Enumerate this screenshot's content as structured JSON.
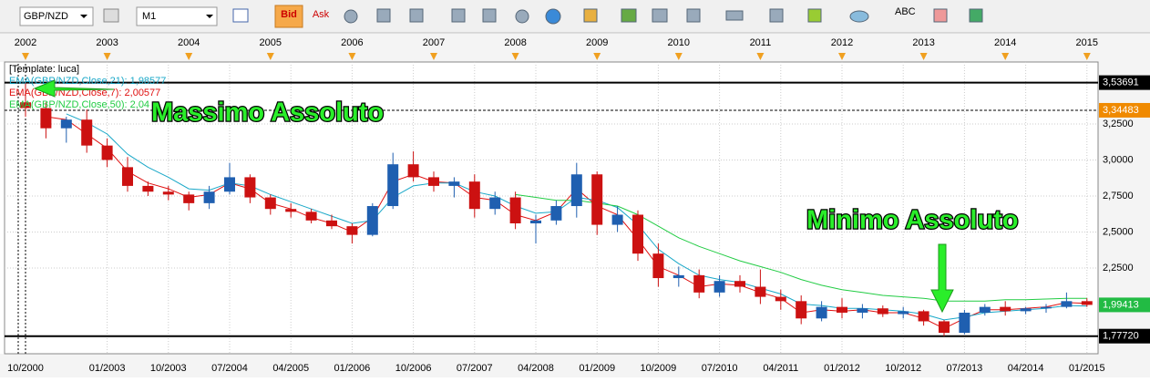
{
  "toolbar": {
    "symbol": "GBP/NZD",
    "timeframe": "M1",
    "bid": "Bid",
    "ask": "Ask",
    "abc": "ABC"
  },
  "chart_data": {
    "type": "candlestick",
    "legend_lines": [
      "[Template: luca]",
      "EMA(GBP/NZD,Close,21): 1,98577",
      "EMA(GBP/NZD,Close,7): 2,00577",
      "EMA(GBP/NZD,Close,50): 2,04"
    ],
    "annotations": [
      "Massimo Assoluto",
      "Minimo Assoluto"
    ],
    "top_axis": [
      "2002",
      "2003",
      "2004",
      "2005",
      "2006",
      "2007",
      "2008",
      "2009",
      "2010",
      "2011",
      "2012",
      "2013",
      "2014",
      "2015"
    ],
    "categories": [
      "10/2000",
      null,
      null,
      null,
      "01/2003",
      null,
      null,
      "10/2003",
      null,
      null,
      "07/2004",
      null,
      null,
      "04/2005",
      null,
      null,
      "01/2006",
      null,
      null,
      "10/2006",
      null,
      null,
      "07/2007",
      null,
      null,
      "04/2008",
      null,
      null,
      "01/2009",
      null,
      null,
      "10/2009",
      null,
      null,
      "07/2010",
      null,
      null,
      "04/2011",
      null,
      null,
      "01/2012",
      null,
      null,
      "10/2012",
      null,
      null,
      "07/2013",
      null,
      null,
      "04/2014",
      null,
      null,
      "01/2015"
    ],
    "open": [
      3.4,
      3.36,
      3.22,
      3.28,
      3.1,
      2.95,
      2.82,
      2.78,
      2.76,
      2.7,
      2.78,
      2.88,
      2.74,
      2.66,
      2.64,
      2.58,
      2.54,
      2.48,
      2.68,
      2.97,
      2.88,
      2.82,
      2.85,
      2.66,
      2.74,
      2.56,
      2.58,
      2.68,
      2.9,
      2.55,
      2.62,
      2.35,
      2.18,
      2.2,
      2.08,
      2.16,
      2.12,
      2.05,
      2.02,
      1.9,
      1.98,
      1.94,
      1.97,
      1.93,
      1.95,
      1.88,
      1.8,
      1.94,
      1.98,
      1.95,
      1.97,
      1.98,
      2.02
    ],
    "high": [
      3.537,
      3.4,
      3.3,
      3.35,
      3.15,
      3.02,
      2.85,
      2.82,
      2.78,
      2.82,
      2.98,
      2.9,
      2.76,
      2.7,
      2.66,
      2.62,
      2.56,
      2.7,
      3.05,
      3.06,
      2.92,
      2.88,
      2.9,
      2.78,
      2.78,
      2.62,
      2.72,
      2.98,
      2.92,
      2.68,
      2.65,
      2.42,
      2.26,
      2.24,
      2.2,
      2.2,
      2.24,
      2.1,
      2.06,
      2.02,
      2.04,
      2.0,
      1.99,
      1.98,
      1.96,
      1.89,
      1.96,
      2.0,
      2.02,
      1.98,
      2.0,
      2.08,
      2.04
    ],
    "low": [
      3.3,
      3.15,
      3.12,
      3.05,
      2.95,
      2.78,
      2.75,
      2.72,
      2.65,
      2.66,
      2.76,
      2.7,
      2.62,
      2.6,
      2.56,
      2.52,
      2.42,
      2.47,
      2.66,
      2.85,
      2.78,
      2.74,
      2.6,
      2.62,
      2.52,
      2.42,
      2.55,
      2.6,
      2.48,
      2.5,
      2.3,
      2.12,
      2.12,
      2.04,
      2.05,
      2.08,
      2.0,
      1.96,
      1.86,
      1.88,
      1.9,
      1.9,
      1.91,
      1.9,
      1.85,
      1.777,
      1.79,
      1.92,
      1.92,
      1.93,
      1.94,
      1.97,
      1.98
    ],
    "close": [
      3.36,
      3.22,
      3.28,
      3.1,
      3.0,
      2.82,
      2.78,
      2.76,
      2.7,
      2.78,
      2.88,
      2.74,
      2.66,
      2.64,
      2.58,
      2.54,
      2.48,
      2.68,
      2.97,
      2.88,
      2.82,
      2.85,
      2.66,
      2.74,
      2.56,
      2.58,
      2.68,
      2.9,
      2.55,
      2.62,
      2.35,
      2.18,
      2.2,
      2.08,
      2.16,
      2.12,
      2.05,
      2.02,
      1.9,
      1.98,
      1.94,
      1.97,
      1.93,
      1.95,
      1.88,
      1.8,
      1.94,
      1.98,
      1.95,
      1.97,
      1.98,
      2.02,
      1.994
    ],
    "up_color": "#1f5fb0",
    "down_color": "#cc1111",
    "series": [
      {
        "color": "#e01010",
        "values": [
          null,
          3.3,
          3.28,
          3.18,
          3.08,
          2.92,
          2.84,
          2.8,
          2.74,
          2.76,
          2.84,
          2.8,
          2.7,
          2.66,
          2.6,
          2.56,
          2.5,
          2.6,
          2.85,
          2.9,
          2.85,
          2.84,
          2.74,
          2.72,
          2.62,
          2.58,
          2.64,
          2.8,
          2.68,
          2.62,
          2.45,
          2.26,
          2.2,
          2.12,
          2.14,
          2.13,
          2.08,
          2.04,
          1.94,
          1.96,
          1.95,
          1.96,
          1.94,
          1.94,
          1.9,
          1.83,
          1.9,
          1.96,
          1.96,
          1.97,
          1.98,
          2.01,
          2.005
        ]
      },
      {
        "color": "#1aa8c8",
        "values": [
          null,
          null,
          3.32,
          3.26,
          3.18,
          3.04,
          2.95,
          2.88,
          2.8,
          2.79,
          2.84,
          2.82,
          2.76,
          2.71,
          2.66,
          2.61,
          2.56,
          2.58,
          2.74,
          2.82,
          2.84,
          2.84,
          2.78,
          2.75,
          2.68,
          2.63,
          2.64,
          2.74,
          2.72,
          2.67,
          2.55,
          2.38,
          2.28,
          2.2,
          2.17,
          2.15,
          2.11,
          2.07,
          2.0,
          1.99,
          1.97,
          1.97,
          1.96,
          1.95,
          1.93,
          1.89,
          1.91,
          1.94,
          1.95,
          1.96,
          1.97,
          1.99,
          1.986
        ]
      },
      {
        "color": "#22cc44",
        "values": [
          null,
          null,
          null,
          null,
          null,
          null,
          null,
          null,
          null,
          null,
          null,
          null,
          null,
          null,
          null,
          null,
          null,
          null,
          null,
          null,
          null,
          null,
          null,
          null,
          2.76,
          2.74,
          2.72,
          2.72,
          2.7,
          2.68,
          2.62,
          2.54,
          2.46,
          2.4,
          2.35,
          2.3,
          2.26,
          2.22,
          2.17,
          2.13,
          2.1,
          2.08,
          2.06,
          2.05,
          2.04,
          2.02,
          2.02,
          2.02,
          2.03,
          2.03,
          2.035,
          2.04,
          2.04
        ]
      }
    ],
    "ylim": [
      1.655,
      3.68
    ],
    "yticks": [
      {
        "value": 3.25,
        "label": "3,2500"
      },
      {
        "value": 3.0,
        "label": "3,0000"
      },
      {
        "value": 2.75,
        "label": "2,7500"
      },
      {
        "value": 2.5,
        "label": "2,5000"
      },
      {
        "value": 2.25,
        "label": "2,2500"
      }
    ],
    "levels": [
      {
        "value": 3.53691,
        "label": "3,53691",
        "color": "#000000",
        "dashed": false
      },
      {
        "value": 3.34483,
        "label": "3,34483",
        "color": "#f08a00",
        "dashed": true
      },
      {
        "value": 1.99413,
        "label": "1,99413",
        "color": "#22bb44",
        "dashed": null
      },
      {
        "value": 1.7772,
        "label": "1,77720",
        "color": "#000000",
        "dashed": false
      }
    ],
    "grid": true
  }
}
